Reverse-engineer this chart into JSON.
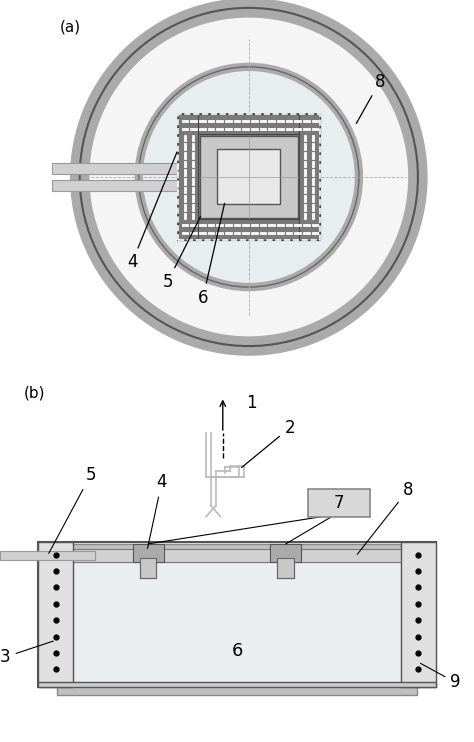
{
  "fig_width": 4.74,
  "fig_height": 7.42,
  "dpi": 100,
  "bg_color": "#ffffff",
  "panel_a_label": "(a)",
  "panel_b_label": "(b)",
  "label_fontsize": 11,
  "number_fontsize": 12
}
